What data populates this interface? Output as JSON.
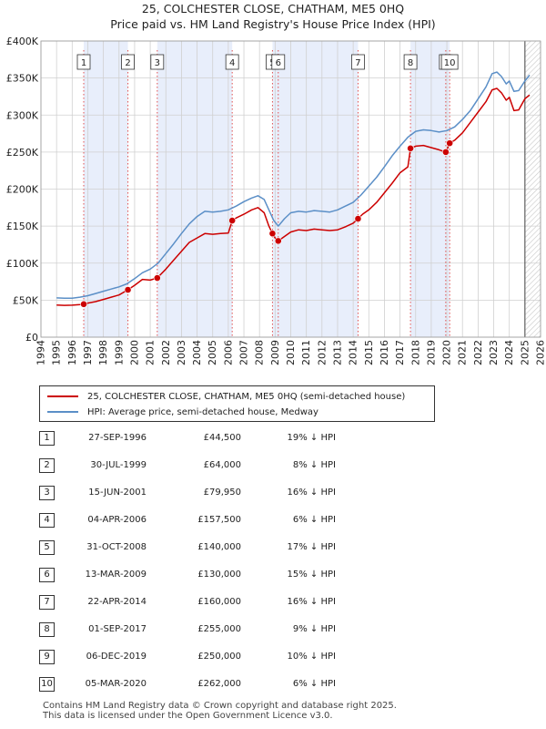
{
  "chart_data": {
    "type": "line",
    "title": "25, COLCHESTER CLOSE, CHATHAM, ME5 0HQ",
    "subtitle": "Price paid vs. HM Land Registry's House Price Index (HPI)",
    "xlim": [
      1994,
      2026
    ],
    "ylim": [
      0,
      400000
    ],
    "x_ticks": [
      1994,
      1995,
      1996,
      1997,
      1998,
      1999,
      2000,
      2001,
      2002,
      2003,
      2004,
      2005,
      2006,
      2007,
      2008,
      2009,
      2010,
      2011,
      2012,
      2013,
      2014,
      2015,
      2016,
      2017,
      2018,
      2019,
      2020,
      2021,
      2022,
      2023,
      2024,
      2025,
      2026
    ],
    "y_ticks": [
      {
        "value": 0,
        "label": "£0"
      },
      {
        "value": 50000,
        "label": "£50K"
      },
      {
        "value": 100000,
        "label": "£100K"
      },
      {
        "value": 150000,
        "label": "£150K"
      },
      {
        "value": 200000,
        "label": "£200K"
      },
      {
        "value": 250000,
        "label": "£250K"
      },
      {
        "value": 300000,
        "label": "£300K"
      },
      {
        "value": 350000,
        "label": "£350K"
      },
      {
        "value": 400000,
        "label": "£400K"
      }
    ],
    "grid": true,
    "series": [
      {
        "name": "25, COLCHESTER CLOSE, CHATHAM, ME5 0HQ (semi-detached house)",
        "color": "#cc0000",
        "points": [
          [
            1995.0,
            43500
          ],
          [
            1995.5,
            43000
          ],
          [
            1996.0,
            43200
          ],
          [
            1996.5,
            44000
          ],
          [
            1996.74,
            44500
          ],
          [
            1997.0,
            46000
          ],
          [
            1997.5,
            48000
          ],
          [
            1998.0,
            51000
          ],
          [
            1998.5,
            54000
          ],
          [
            1999.0,
            57000
          ],
          [
            1999.57,
            64000
          ],
          [
            2000.0,
            70000
          ],
          [
            2000.5,
            78000
          ],
          [
            2001.0,
            77000
          ],
          [
            2001.45,
            79950
          ],
          [
            2002.0,
            92000
          ],
          [
            2002.5,
            104000
          ],
          [
            2003.0,
            116000
          ],
          [
            2003.5,
            128000
          ],
          [
            2004.0,
            134000
          ],
          [
            2004.5,
            140000
          ],
          [
            2005.0,
            139000
          ],
          [
            2005.5,
            140000
          ],
          [
            2006.0,
            140500
          ],
          [
            2006.25,
            157500
          ],
          [
            2006.5,
            161000
          ],
          [
            2007.0,
            166000
          ],
          [
            2007.5,
            172000
          ],
          [
            2007.9,
            175000
          ],
          [
            2008.3,
            168000
          ],
          [
            2008.6,
            150000
          ],
          [
            2008.83,
            140000
          ],
          [
            2009.0,
            134000
          ],
          [
            2009.2,
            130000
          ],
          [
            2009.6,
            136000
          ],
          [
            2010.0,
            142000
          ],
          [
            2010.5,
            145000
          ],
          [
            2011.0,
            144000
          ],
          [
            2011.5,
            146000
          ],
          [
            2012.0,
            145000
          ],
          [
            2012.5,
            144000
          ],
          [
            2013.0,
            145000
          ],
          [
            2013.5,
            149000
          ],
          [
            2014.0,
            154000
          ],
          [
            2014.31,
            160000
          ],
          [
            2014.6,
            166000
          ],
          [
            2015.0,
            172000
          ],
          [
            2015.5,
            182000
          ],
          [
            2016.0,
            195000
          ],
          [
            2016.5,
            208000
          ],
          [
            2017.0,
            222000
          ],
          [
            2017.5,
            230000
          ],
          [
            2017.67,
            255000
          ],
          [
            2018.0,
            258000
          ],
          [
            2018.5,
            259000
          ],
          [
            2019.0,
            256000
          ],
          [
            2019.5,
            253000
          ],
          [
            2019.93,
            250000
          ],
          [
            2020.18,
            262000
          ],
          [
            2020.5,
            266000
          ],
          [
            2021.0,
            276000
          ],
          [
            2021.5,
            290000
          ],
          [
            2022.0,
            304000
          ],
          [
            2022.5,
            318000
          ],
          [
            2022.9,
            334000
          ],
          [
            2023.2,
            336000
          ],
          [
            2023.5,
            330000
          ],
          [
            2023.8,
            320000
          ],
          [
            2024.0,
            324000
          ],
          [
            2024.3,
            306000
          ],
          [
            2024.6,
            307000
          ],
          [
            2025.0,
            322000
          ],
          [
            2025.3,
            327000
          ]
        ]
      },
      {
        "name": "HPI: Average price, semi-detached house, Medway",
        "color": "#5b8fc7",
        "points": [
          [
            1995.0,
            53000
          ],
          [
            1995.5,
            52500
          ],
          [
            1996.0,
            52500
          ],
          [
            1996.5,
            54000
          ],
          [
            1997.0,
            56000
          ],
          [
            1997.5,
            59000
          ],
          [
            1998.0,
            62000
          ],
          [
            1998.5,
            65000
          ],
          [
            1999.0,
            68000
          ],
          [
            1999.5,
            72000
          ],
          [
            2000.0,
            79000
          ],
          [
            2000.5,
            87000
          ],
          [
            2001.0,
            92000
          ],
          [
            2001.5,
            100000
          ],
          [
            2002.0,
            113000
          ],
          [
            2002.5,
            126000
          ],
          [
            2003.0,
            140000
          ],
          [
            2003.5,
            153000
          ],
          [
            2004.0,
            163000
          ],
          [
            2004.5,
            170000
          ],
          [
            2005.0,
            169000
          ],
          [
            2005.5,
            170000
          ],
          [
            2006.0,
            172000
          ],
          [
            2006.5,
            177000
          ],
          [
            2007.0,
            183000
          ],
          [
            2007.5,
            188000
          ],
          [
            2007.9,
            191000
          ],
          [
            2008.3,
            186000
          ],
          [
            2008.6,
            172000
          ],
          [
            2008.9,
            158000
          ],
          [
            2009.2,
            150000
          ],
          [
            2009.6,
            160000
          ],
          [
            2010.0,
            168000
          ],
          [
            2010.5,
            170000
          ],
          [
            2011.0,
            169000
          ],
          [
            2011.5,
            171000
          ],
          [
            2012.0,
            170000
          ],
          [
            2012.5,
            169000
          ],
          [
            2013.0,
            172000
          ],
          [
            2013.5,
            177000
          ],
          [
            2014.0,
            182000
          ],
          [
            2014.5,
            192000
          ],
          [
            2015.0,
            204000
          ],
          [
            2015.5,
            216000
          ],
          [
            2016.0,
            230000
          ],
          [
            2016.5,
            245000
          ],
          [
            2017.0,
            258000
          ],
          [
            2017.5,
            270000
          ],
          [
            2018.0,
            278000
          ],
          [
            2018.5,
            280000
          ],
          [
            2019.0,
            279000
          ],
          [
            2019.5,
            277000
          ],
          [
            2020.0,
            279000
          ],
          [
            2020.5,
            284000
          ],
          [
            2021.0,
            294000
          ],
          [
            2021.5,
            306000
          ],
          [
            2022.0,
            322000
          ],
          [
            2022.5,
            338000
          ],
          [
            2022.9,
            356000
          ],
          [
            2023.2,
            358000
          ],
          [
            2023.5,
            352000
          ],
          [
            2023.8,
            342000
          ],
          [
            2024.0,
            346000
          ],
          [
            2024.3,
            332000
          ],
          [
            2024.6,
            333000
          ],
          [
            2025.0,
            346000
          ],
          [
            2025.3,
            354000
          ]
        ]
      }
    ],
    "shaded_spans": [
      [
        1996.74,
        1999.57
      ],
      [
        2001.45,
        2006.25
      ],
      [
        2008.83,
        2014.31
      ],
      [
        2017.67,
        2020.18
      ]
    ],
    "hatch_after": 2025.0,
    "markers": [
      {
        "label": "1",
        "x": 1996.74,
        "value": 44500
      },
      {
        "label": "2",
        "x": 1999.57,
        "value": 64000
      },
      {
        "label": "3",
        "x": 2001.45,
        "value": 79950
      },
      {
        "label": "4",
        "x": 2006.25,
        "value": 157500
      },
      {
        "label": "5",
        "x": 2008.83,
        "value": 140000
      },
      {
        "label": "6",
        "x": 2009.2,
        "value": 130000
      },
      {
        "label": "7",
        "x": 2014.31,
        "value": 160000
      },
      {
        "label": "8",
        "x": 2017.67,
        "value": 255000
      },
      {
        "label": "9",
        "x": 2019.93,
        "value": 250000
      },
      {
        "label": "10",
        "x": 2020.18,
        "value": 262000
      }
    ]
  },
  "legend": {
    "property": "25, COLCHESTER CLOSE, CHATHAM, ME5 0HQ (semi-detached house)",
    "hpi": "HPI: Average price, semi-detached house, Medway"
  },
  "sales": [
    {
      "num": "1",
      "date": "27-SEP-1996",
      "price": "£44,500",
      "hpi": "19% ↓ HPI"
    },
    {
      "num": "2",
      "date": "30-JUL-1999",
      "price": "£64,000",
      "hpi": "8% ↓ HPI"
    },
    {
      "num": "3",
      "date": "15-JUN-2001",
      "price": "£79,950",
      "hpi": "16% ↓ HPI"
    },
    {
      "num": "4",
      "date": "04-APR-2006",
      "price": "£157,500",
      "hpi": "6% ↓ HPI"
    },
    {
      "num": "5",
      "date": "31-OCT-2008",
      "price": "£140,000",
      "hpi": "17% ↓ HPI"
    },
    {
      "num": "6",
      "date": "13-MAR-2009",
      "price": "£130,000",
      "hpi": "15% ↓ HPI"
    },
    {
      "num": "7",
      "date": "22-APR-2014",
      "price": "£160,000",
      "hpi": "16% ↓ HPI"
    },
    {
      "num": "8",
      "date": "01-SEP-2017",
      "price": "£255,000",
      "hpi": "9% ↓ HPI"
    },
    {
      "num": "9",
      "date": "06-DEC-2019",
      "price": "£250,000",
      "hpi": "10% ↓ HPI"
    },
    {
      "num": "10",
      "date": "05-MAR-2020",
      "price": "£262,000",
      "hpi": "6% ↓ HPI"
    }
  ],
  "footer": {
    "line1": "Contains HM Land Registry data © Crown copyright and database right 2025.",
    "line2": "This data is licensed under the Open Government Licence v3.0."
  },
  "colors": {
    "property_line": "#cc0000",
    "hpi_line": "#5b8fc7",
    "shade": "#e8eefb",
    "grid": "#d0d0d0",
    "marker_line": "#e05050"
  }
}
